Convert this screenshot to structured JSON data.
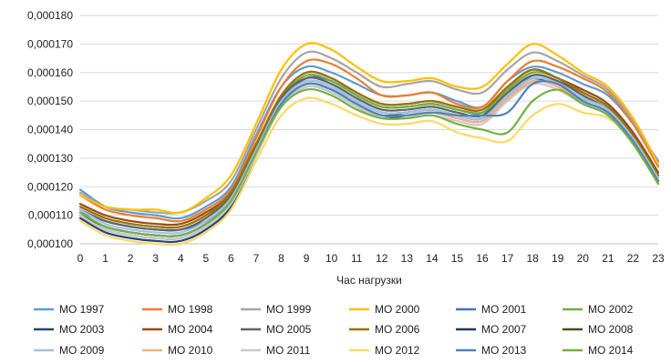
{
  "chart_data": {
    "type": "line",
    "title": "",
    "xlabel": "Час нагрузки",
    "ylabel": "",
    "x": [
      0,
      1,
      2,
      3,
      4,
      5,
      6,
      7,
      8,
      9,
      10,
      11,
      12,
      13,
      14,
      15,
      16,
      17,
      18,
      19,
      20,
      21,
      22,
      23
    ],
    "x_tick_labels": [
      "0",
      "1",
      "2",
      "3",
      "4",
      "5",
      "6",
      "7",
      "8",
      "9",
      "10",
      "11",
      "12",
      "13",
      "14",
      "15",
      "16",
      "17",
      "18",
      "19",
      "20",
      "21",
      "22",
      "23"
    ],
    "y_tick_labels": [
      "0,000100",
      "0,000110",
      "0,000120",
      "0,000130",
      "0,000140",
      "0,000150",
      "0,000160",
      "0,000170",
      "0,000180"
    ],
    "ylim": [
      0.0001,
      0.00018
    ],
    "grid": "horizontal",
    "legend": "bottom",
    "series": [
      {
        "name": "МО 1997",
        "color": "#5b9bd5",
        "values": [
          0.000119,
          0.000113,
          0.000111,
          0.00011,
          0.000109,
          0.000113,
          0.00012,
          0.000138,
          0.000155,
          0.000162,
          0.00016,
          0.000156,
          0.000152,
          0.000152,
          0.000153,
          0.00015,
          0.000148,
          0.000157,
          0.000162,
          0.00016,
          0.000156,
          0.000152,
          0.000142,
          0.000129
        ]
      },
      {
        "name": "МО 1998",
        "color": "#ed7d31",
        "values": [
          0.000117,
          0.000112,
          0.00011,
          0.000109,
          0.000108,
          0.000112,
          0.000119,
          0.000137,
          0.000155,
          0.000164,
          0.000163,
          0.000158,
          0.000152,
          0.000152,
          0.000153,
          0.000149,
          0.000148,
          0.000157,
          0.000164,
          0.000162,
          0.000158,
          0.000153,
          0.000142,
          0.000127
        ]
      },
      {
        "name": "МО 1999",
        "color": "#a5a5a5",
        "values": [
          0.000118,
          0.000113,
          0.000112,
          0.000111,
          0.000111,
          0.000115,
          0.000122,
          0.00014,
          0.000158,
          0.000167,
          0.000165,
          0.00016,
          0.000155,
          0.000156,
          0.000157,
          0.000154,
          0.000153,
          0.000161,
          0.000167,
          0.000164,
          0.000159,
          0.000154,
          0.000143,
          0.000128
        ]
      },
      {
        "name": "МО 2000",
        "color": "#ffc000",
        "values": [
          0.000117,
          0.000113,
          0.000112,
          0.000112,
          0.000111,
          0.000116,
          0.000124,
          0.000142,
          0.000161,
          0.00017,
          0.000168,
          0.000162,
          0.000157,
          0.000157,
          0.000158,
          0.000155,
          0.000155,
          0.000163,
          0.00017,
          0.000166,
          0.00016,
          0.000155,
          0.000144,
          0.000128
        ]
      },
      {
        "name": "МО 2001",
        "color": "#4472c4",
        "values": [
          0.000111,
          0.000108,
          0.000106,
          0.000105,
          0.000105,
          0.000108,
          0.000115,
          0.000132,
          0.00015,
          0.000158,
          0.000157,
          0.000152,
          0.000148,
          0.000148,
          0.000149,
          0.000147,
          0.000146,
          0.000152,
          0.000159,
          0.000157,
          0.000153,
          0.000148,
          0.000138,
          0.000124
        ]
      },
      {
        "name": "МО 2002",
        "color": "#70ad47",
        "values": [
          0.000113,
          0.000109,
          0.000107,
          0.000106,
          0.000106,
          0.00011,
          0.000117,
          0.000134,
          0.000151,
          0.000159,
          0.000157,
          0.000152,
          0.000148,
          0.000148,
          0.000149,
          0.000147,
          0.000146,
          0.000154,
          0.00016,
          0.000158,
          0.000153,
          0.000148,
          0.000138,
          0.000125
        ]
      },
      {
        "name": "МО 2003",
        "color": "#264478",
        "values": [
          0.000109,
          0.000104,
          0.000102,
          0.000101,
          0.000101,
          0.000105,
          0.000113,
          0.000131,
          0.000148,
          0.000155,
          0.000153,
          0.000148,
          0.000144,
          0.000145,
          0.000146,
          0.000144,
          0.000143,
          0.000151,
          0.000157,
          0.000156,
          0.00015,
          0.000146,
          0.000136,
          0.000121
        ]
      },
      {
        "name": "МО 2004",
        "color": "#9e480e",
        "values": [
          0.000114,
          0.00011,
          0.000108,
          0.000107,
          0.000107,
          0.000111,
          0.000118,
          0.000135,
          0.000152,
          0.00016,
          0.000158,
          0.000153,
          0.000149,
          0.000149,
          0.00015,
          0.000148,
          0.000147,
          0.000155,
          0.000161,
          0.000158,
          0.000154,
          0.000149,
          0.000139,
          0.000125
        ]
      },
      {
        "name": "МО 2005",
        "color": "#636363",
        "values": [
          0.000112,
          0.000108,
          0.000106,
          0.000105,
          0.000105,
          0.000109,
          0.000117,
          0.000134,
          0.000151,
          0.000158,
          0.000156,
          0.000151,
          0.000147,
          0.000147,
          0.000148,
          0.000146,
          0.000145,
          0.000153,
          0.000159,
          0.000157,
          0.000152,
          0.000147,
          0.000137,
          0.000124
        ]
      },
      {
        "name": "МО 2006",
        "color": "#997300",
        "values": [
          0.000113,
          0.000109,
          0.000107,
          0.000106,
          0.000106,
          0.00011,
          0.000118,
          0.000135,
          0.000152,
          0.00016,
          0.000158,
          0.000153,
          0.000149,
          0.000149,
          0.00015,
          0.000148,
          0.000147,
          0.000155,
          0.000161,
          0.000158,
          0.000153,
          0.000148,
          0.000138,
          0.000124
        ]
      },
      {
        "name": "МО 2007",
        "color": "#203864",
        "values": [
          0.00011,
          0.000105,
          0.000103,
          0.000102,
          0.000102,
          0.000106,
          0.000114,
          0.000132,
          0.00015,
          0.000157,
          0.000155,
          0.00015,
          0.000146,
          0.000146,
          0.000147,
          0.000145,
          0.000144,
          0.000152,
          0.000158,
          0.000156,
          0.000151,
          0.000147,
          0.000137,
          0.000122
        ]
      },
      {
        "name": "МО 2008",
        "color": "#375623",
        "values": [
          0.00011,
          0.000106,
          0.000104,
          0.000103,
          0.000103,
          0.000107,
          0.000115,
          0.000132,
          0.000149,
          0.000156,
          0.000154,
          0.000149,
          0.000145,
          0.000146,
          0.000147,
          0.000145,
          0.000144,
          0.000152,
          0.000158,
          0.000156,
          0.000151,
          0.000147,
          0.000137,
          0.000122
        ]
      },
      {
        "name": "МО 2009",
        "color": "#9dc3e6",
        "values": [
          0.000112,
          0.000107,
          0.000105,
          0.000104,
          0.000104,
          0.000108,
          0.000116,
          0.000133,
          0.00015,
          0.000157,
          0.000155,
          0.00015,
          0.000146,
          0.000146,
          0.000147,
          0.000145,
          0.000144,
          0.000152,
          0.000158,
          0.000156,
          0.000151,
          0.000147,
          0.000137,
          0.000123
        ]
      },
      {
        "name": "МО 2010",
        "color": "#f4b183",
        "values": [
          0.000111,
          0.000106,
          0.000104,
          0.000103,
          0.000103,
          0.000107,
          0.000115,
          0.000132,
          0.000149,
          0.000156,
          0.000154,
          0.000149,
          0.000145,
          0.000145,
          0.000146,
          0.000144,
          0.000143,
          0.000151,
          0.000157,
          0.000155,
          0.00015,
          0.000146,
          0.000136,
          0.000122
        ]
      },
      {
        "name": "МО 2011",
        "color": "#c9c9c9",
        "values": [
          0.00011,
          0.000105,
          0.000103,
          0.000102,
          0.000102,
          0.000106,
          0.000114,
          0.000131,
          0.000148,
          0.000155,
          0.000153,
          0.000148,
          0.000144,
          0.000144,
          0.000145,
          0.000143,
          0.000142,
          0.00015,
          0.000156,
          0.000154,
          0.000149,
          0.000145,
          0.000135,
          0.000121
        ]
      },
      {
        "name": "МО 2012",
        "color": "#ffd966",
        "values": [
          0.000108,
          0.000103,
          0.000101,
          0.0001,
          0.0001,
          0.000104,
          0.000112,
          0.000129,
          0.000145,
          0.000151,
          0.000149,
          0.000145,
          0.000142,
          0.000142,
          0.000143,
          0.000139,
          0.000137,
          0.000136,
          0.000145,
          0.000149,
          0.000146,
          0.000144,
          0.000136,
          0.000122
        ]
      },
      {
        "name": "МО 2013",
        "color": "#4f81bd",
        "values": [
          0.000111,
          0.000106,
          0.000104,
          0.000103,
          0.000103,
          0.000107,
          0.000115,
          0.000132,
          0.000149,
          0.000156,
          0.000154,
          0.000149,
          0.000145,
          0.000145,
          0.000146,
          0.000145,
          0.000145,
          0.000146,
          0.000156,
          0.000156,
          0.00015,
          0.000146,
          0.000136,
          0.000122
        ]
      },
      {
        "name": "МО 2014",
        "color": "#76b041",
        "values": [
          0.000111,
          0.000106,
          0.000104,
          0.000103,
          0.000103,
          0.000107,
          0.000115,
          0.000132,
          0.000148,
          0.000154,
          0.000152,
          0.000147,
          0.000144,
          0.000144,
          0.000145,
          0.000142,
          0.00014,
          0.000139,
          0.00015,
          0.000154,
          0.000149,
          0.000145,
          0.000135,
          0.000121
        ]
      }
    ]
  }
}
